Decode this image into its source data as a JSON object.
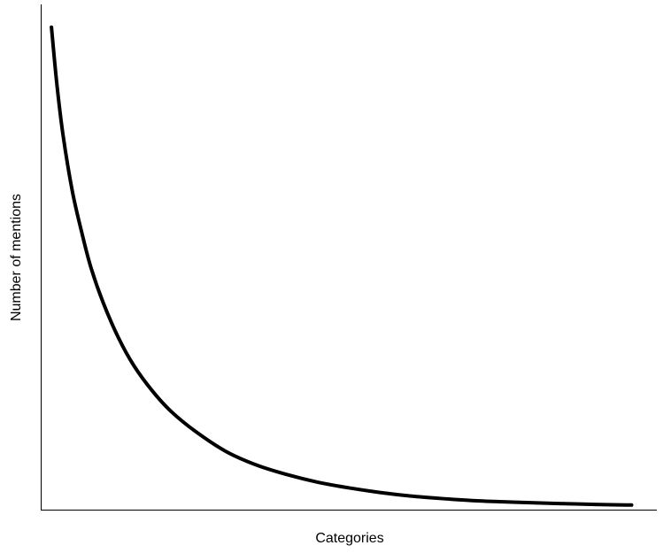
{
  "chart_data": {
    "type": "line",
    "title": "",
    "xlabel": "Categories",
    "ylabel": "Number of mentions",
    "grid": false,
    "legend": "none",
    "x_ticks": false,
    "y_ticks": false,
    "line_color": "#000000",
    "xlim": [
      0,
      1
    ],
    "ylim": [
      0,
      1
    ],
    "series": [
      {
        "x": [
          0.016,
          0.025,
          0.035,
          0.05,
          0.065,
          0.08,
          0.1,
          0.125,
          0.15,
          0.18,
          0.21,
          0.25,
          0.3,
          0.35,
          0.4,
          0.45,
          0.5,
          0.55,
          0.6,
          0.65,
          0.7,
          0.75,
          0.8,
          0.85,
          0.9,
          0.95,
          0.959
        ],
        "y": [
          0.955,
          0.84,
          0.74,
          0.63,
          0.55,
          0.48,
          0.41,
          0.34,
          0.285,
          0.235,
          0.195,
          0.155,
          0.115,
          0.088,
          0.069,
          0.054,
          0.043,
          0.034,
          0.027,
          0.022,
          0.018,
          0.0155,
          0.0135,
          0.0118,
          0.0103,
          0.0092,
          0.0091
        ]
      }
    ]
  }
}
